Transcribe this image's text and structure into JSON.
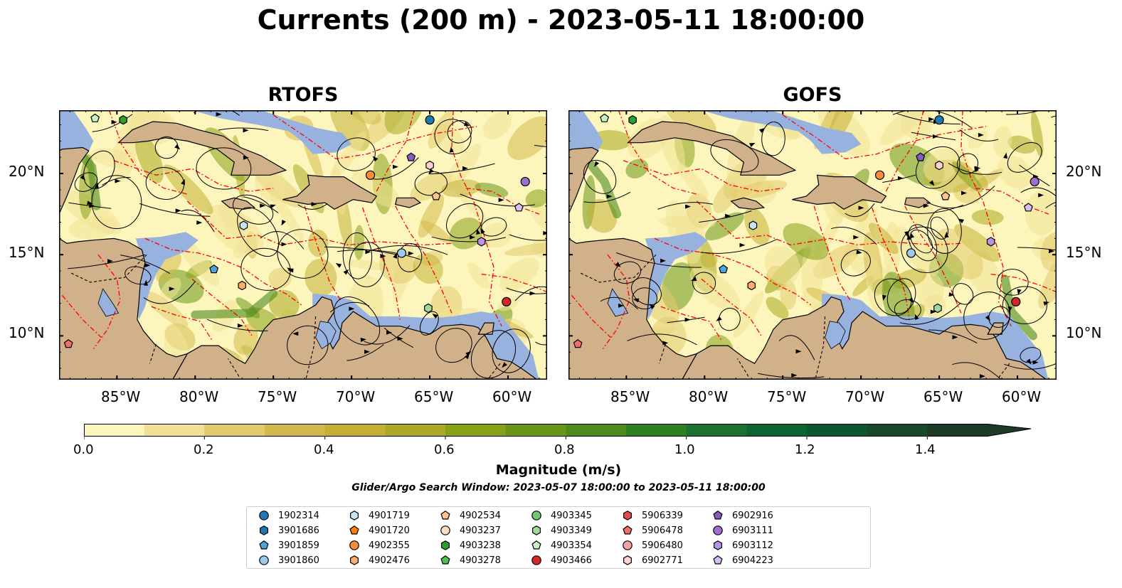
{
  "title": "Currents (200 m) - 2023-05-11 18:00:00",
  "panels": [
    {
      "title": "RTOFS"
    },
    {
      "title": "GOFS"
    }
  ],
  "lon_ticks": [
    "85°W",
    "80°W",
    "75°W",
    "70°W",
    "65°W",
    "60°W"
  ],
  "lat_ticks": [
    "20°N",
    "15°N",
    "10°N"
  ],
  "colors": {
    "land": "#d1b189",
    "shallow_water": "#98b2e0",
    "boundary": "#ff0000",
    "streamline": "#000000"
  },
  "colorbar": {
    "label": "Magnitude (m/s)",
    "ticks": [
      "0.0",
      "0.2",
      "0.4",
      "0.6",
      "0.8",
      "1.0",
      "1.2",
      "1.4"
    ],
    "range": [
      0,
      1.5
    ],
    "extend": "max",
    "colors": [
      "#fcf6bd",
      "#f0e196",
      "#e2cb6e",
      "#d3b94b",
      "#c3b035",
      "#a9a923",
      "#87a117",
      "#6a9516",
      "#4d8b1d",
      "#317f24",
      "#1b7230",
      "#0c6432",
      "#0e5630",
      "#16482b",
      "#1c3a25"
    ]
  },
  "search_window": "Glider/Argo Search Window: 2023-05-07 18:00:00 to 2023-05-11 18:00:00",
  "legend": [
    {
      "id": "1902314",
      "marker": "circle",
      "color": "#1f77b4"
    },
    {
      "id": "3901686",
      "marker": "hexagon",
      "color": "#1f77b4"
    },
    {
      "id": "3901859",
      "marker": "pentagon",
      "color": "#4ea4dc"
    },
    {
      "id": "3901860",
      "marker": "circle",
      "color": "#9ecae9"
    },
    {
      "id": "4901719",
      "marker": "hexagon",
      "color": "#c6e4f6"
    },
    {
      "id": "4901720",
      "marker": "pentagon",
      "color": "#ff7f0e"
    },
    {
      "id": "4902355",
      "marker": "circle",
      "color": "#fd8d3c"
    },
    {
      "id": "4902476",
      "marker": "hexagon",
      "color": "#fdae6b"
    },
    {
      "id": "4902534",
      "marker": "pentagon",
      "color": "#fdc48f"
    },
    {
      "id": "4903237",
      "marker": "circle",
      "color": "#fde0c5"
    },
    {
      "id": "4903238",
      "marker": "hexagon",
      "color": "#2ca02c"
    },
    {
      "id": "4903278",
      "marker": "pentagon",
      "color": "#4fbf4f"
    },
    {
      "id": "4903345",
      "marker": "circle",
      "color": "#74c476"
    },
    {
      "id": "4903349",
      "marker": "hexagon",
      "color": "#a1d99b"
    },
    {
      "id": "4903354",
      "marker": "pentagon",
      "color": "#c7f3c4"
    },
    {
      "id": "4903466",
      "marker": "circle",
      "color": "#d62728"
    },
    {
      "id": "5906339",
      "marker": "hexagon",
      "color": "#e34a4a"
    },
    {
      "id": "5906478",
      "marker": "pentagon",
      "color": "#ef6f6f"
    },
    {
      "id": "5906480",
      "marker": "circle",
      "color": "#f4a3a3"
    },
    {
      "id": "6902771",
      "marker": "hexagon",
      "color": "#fcd1d1"
    },
    {
      "id": "6902916",
      "marker": "pentagon",
      "color": "#8a5ac2"
    },
    {
      "id": "6903111",
      "marker": "circle",
      "color": "#9e6fd0"
    },
    {
      "id": "6903112",
      "marker": "hexagon",
      "color": "#b994e4"
    },
    {
      "id": "6904223",
      "marker": "pentagon",
      "color": "#d6bff3"
    }
  ],
  "floats": [
    {
      "id": "1902314",
      "lon": -65.0,
      "lat": 23.3,
      "gofs_lat": 23.3
    },
    {
      "id": "4903238",
      "lon": -84.6,
      "lat": 23.3
    },
    {
      "id": "4903354",
      "lon": -86.4,
      "lat": 23.4
    },
    {
      "id": "6902916",
      "lon": -66.2,
      "lat": 21.0
    },
    {
      "id": "6902771",
      "lon": -65.0,
      "lat": 20.5
    },
    {
      "id": "4902355",
      "lon": -68.8,
      "lat": 19.9
    },
    {
      "id": "6903111",
      "lon": -58.9,
      "lat": 19.5
    },
    {
      "id": "4902534",
      "lon": -64.6,
      "lat": 18.6
    },
    {
      "id": "6904223",
      "lon": -59.3,
      "lat": 17.9
    },
    {
      "id": "4901719",
      "lon": -76.9,
      "lat": 16.8
    },
    {
      "id": "3901860",
      "lon": -66.8,
      "lat": 15.1
    },
    {
      "id": "6903112",
      "lon": -61.7,
      "lat": 15.8
    },
    {
      "id": "3901859",
      "lon": -78.8,
      "lat": 14.1
    },
    {
      "id": "4902476",
      "lon": -77.0,
      "lat": 13.1
    },
    {
      "id": "4903349",
      "lon": -65.1,
      "lat": 11.7
    },
    {
      "id": "4903466",
      "lon": -60.1,
      "lat": 12.1
    },
    {
      "id": "5906478",
      "lon": -88.1,
      "lat": 9.5
    }
  ]
}
